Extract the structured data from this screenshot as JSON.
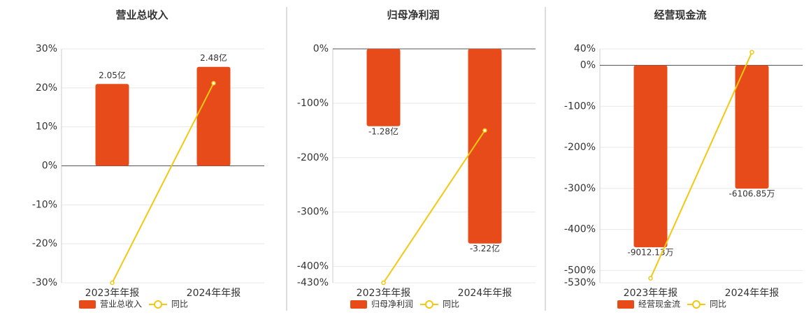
{
  "chart_data": [
    {
      "type": "bar",
      "title": "营业总收入",
      "categories": [
        "2023年年报",
        "2024年年报"
      ],
      "ylim": [
        -30,
        30
      ],
      "yticks": [
        {
          "value": 30,
          "label": "30%"
        },
        {
          "value": 20,
          "label": "20%"
        },
        {
          "value": 10,
          "label": "10%"
        },
        {
          "value": 0,
          "label": "0%"
        },
        {
          "value": -10,
          "label": "-10%"
        },
        {
          "value": -20,
          "label": "-20%"
        },
        {
          "value": -30,
          "label": "-30%"
        }
      ],
      "y2lim": [
        -2.93,
        2.93
      ],
      "grid": true,
      "series": [
        {
          "name": "营业总收入",
          "color": "#e84b1a",
          "axis": "y2",
          "values": [
            2.05,
            2.48
          ],
          "value_labels": [
            "2.05亿",
            "2.48亿"
          ]
        },
        {
          "name": "同比",
          "type": "line",
          "color": "#f2c811",
          "values": [
            -30,
            21.2
          ]
        }
      ]
    },
    {
      "type": "bar",
      "title": "归母净利润",
      "categories": [
        "2023年年报",
        "2024年年报"
      ],
      "ylim": [
        -430,
        0
      ],
      "yticks": [
        {
          "value": 0,
          "label": "0%"
        },
        {
          "value": -100,
          "label": "-100%"
        },
        {
          "value": -200,
          "label": "-200%"
        },
        {
          "value": -300,
          "label": "-300%"
        },
        {
          "value": -400,
          "label": "-400%"
        },
        {
          "value": -430,
          "label": "-430%"
        }
      ],
      "y2lim": [
        -3.87,
        0
      ],
      "grid": true,
      "series": [
        {
          "name": "归母净利润",
          "color": "#e84b1a",
          "axis": "y2",
          "values": [
            -1.28,
            -3.22
          ],
          "value_labels": [
            "-1.28亿",
            "-3.22亿"
          ]
        },
        {
          "name": "同比",
          "type": "line",
          "color": "#f2c811",
          "values": [
            -430,
            -150
          ]
        }
      ]
    },
    {
      "type": "bar",
      "title": "经营现金流",
      "categories": [
        "2023年年报",
        "2024年年报"
      ],
      "ylim": [
        -530,
        40
      ],
      "yticks": [
        {
          "value": 40,
          "label": "40%"
        },
        {
          "value": 0,
          "label": "0%"
        },
        {
          "value": -100,
          "label": "-100%"
        },
        {
          "value": -200,
          "label": "-200%"
        },
        {
          "value": -300,
          "label": "-300%"
        },
        {
          "value": -400,
          "label": "-400%"
        },
        {
          "value": -500,
          "label": "-500%"
        },
        {
          "value": -530,
          "label": "-530%"
        }
      ],
      "y2lim": [
        -10772,
        813
      ],
      "grid": true,
      "series": [
        {
          "name": "经营现金流",
          "color": "#e84b1a",
          "axis": "y2",
          "values": [
            -9012.13,
            -6106.85
          ],
          "value_labels": [
            "-9012.13万",
            "-6106.85万"
          ]
        },
        {
          "name": "同比",
          "type": "line",
          "color": "#f2c811",
          "values": [
            -519,
            32
          ]
        }
      ]
    }
  ]
}
